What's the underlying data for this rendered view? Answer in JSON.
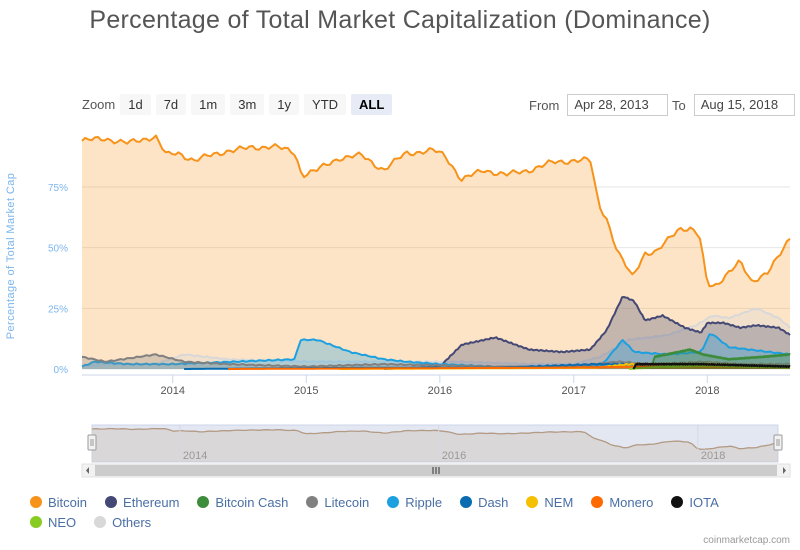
{
  "title": "Percentage of Total Market Capitalization (Dominance)",
  "zoom": {
    "label": "Zoom",
    "buttons": [
      "1d",
      "7d",
      "1m",
      "3m",
      "1y",
      "YTD",
      "ALL"
    ],
    "active": "ALL"
  },
  "range": {
    "from_label": "From",
    "from_value": "Apr 28, 2013",
    "to_label": "To",
    "to_value": "Aug 15, 2018"
  },
  "credits": "coinmarketcap.com",
  "colors": {
    "bitcoin": "#f7931a",
    "ethereum": "#434875",
    "bitcoin_cash": "#3c8c3c",
    "litecoin": "#808080",
    "ripple": "#1da0e0",
    "dash": "#0a6cb0",
    "nem": "#f5c000",
    "monero": "#ff6a00",
    "iota": "#111111",
    "neo": "#88cc22",
    "others": "#d8d8d8"
  },
  "chart_data": {
    "type": "area",
    "title": "Percentage of Total Market Capitalization (Dominance)",
    "ylabel": "Percentage of Total Market Cap",
    "xlabel": "",
    "ylim": [
      0,
      100
    ],
    "xlim": [
      "2013-04-28",
      "2018-08-15"
    ],
    "y_ticks": [
      "0%",
      "25%",
      "50%",
      "75%"
    ],
    "x_ticks": [
      "2014",
      "2015",
      "2016",
      "2017",
      "2018"
    ],
    "navigator_ticks": [
      "2014",
      "2016",
      "2018"
    ],
    "legend_placement": "bottom",
    "grid": true,
    "series": [
      {
        "name": "Bitcoin",
        "points": [
          [
            "2013-04-28",
            94
          ],
          [
            "2013-07-01",
            95
          ],
          [
            "2013-09-01",
            93
          ],
          [
            "2013-11-15",
            96
          ],
          [
            "2013-12-15",
            88
          ],
          [
            "2014-01-15",
            89
          ],
          [
            "2014-03-01",
            86
          ],
          [
            "2014-06-01",
            90
          ],
          [
            "2014-08-01",
            91
          ],
          [
            "2014-10-01",
            92
          ],
          [
            "2014-12-01",
            89
          ],
          [
            "2014-12-20",
            80
          ],
          [
            "2015-02-01",
            82
          ],
          [
            "2015-04-01",
            87
          ],
          [
            "2015-06-01",
            88
          ],
          [
            "2015-08-01",
            82
          ],
          [
            "2015-10-01",
            89
          ],
          [
            "2015-12-15",
            90
          ],
          [
            "2016-01-15",
            88
          ],
          [
            "2016-03-01",
            78
          ],
          [
            "2016-05-01",
            82
          ],
          [
            "2016-07-01",
            80
          ],
          [
            "2016-09-01",
            82
          ],
          [
            "2016-11-01",
            85
          ],
          [
            "2017-01-01",
            86
          ],
          [
            "2017-02-15",
            86
          ],
          [
            "2017-03-10",
            68
          ],
          [
            "2017-04-01",
            62
          ],
          [
            "2017-05-01",
            48
          ],
          [
            "2017-06-10",
            38
          ],
          [
            "2017-07-15",
            48
          ],
          [
            "2017-08-15",
            48
          ],
          [
            "2017-09-15",
            53
          ],
          [
            "2017-10-15",
            58
          ],
          [
            "2017-11-15",
            58
          ],
          [
            "2017-12-10",
            55
          ],
          [
            "2018-01-01",
            35
          ],
          [
            "2018-01-20",
            34
          ],
          [
            "2018-03-01",
            40
          ],
          [
            "2018-04-01",
            44
          ],
          [
            "2018-05-01",
            36
          ],
          [
            "2018-06-15",
            40
          ],
          [
            "2018-07-15",
            46
          ],
          [
            "2018-08-15",
            54
          ]
        ]
      },
      {
        "name": "Ethereum",
        "points": [
          [
            "2015-08-01",
            0
          ],
          [
            "2016-01-01",
            1
          ],
          [
            "2016-03-01",
            10
          ],
          [
            "2016-06-01",
            13
          ],
          [
            "2016-09-01",
            8
          ],
          [
            "2016-12-01",
            7
          ],
          [
            "2017-02-15",
            8
          ],
          [
            "2017-04-01",
            16
          ],
          [
            "2017-05-15",
            30
          ],
          [
            "2017-06-15",
            28
          ],
          [
            "2017-07-15",
            20
          ],
          [
            "2017-09-01",
            22
          ],
          [
            "2017-11-01",
            17
          ],
          [
            "2017-12-15",
            15
          ],
          [
            "2018-01-01",
            19
          ],
          [
            "2018-02-15",
            19
          ],
          [
            "2018-04-01",
            17
          ],
          [
            "2018-05-15",
            18
          ],
          [
            "2018-07-15",
            17
          ],
          [
            "2018-08-15",
            14
          ]
        ]
      },
      {
        "name": "Bitcoin Cash",
        "points": [
          [
            "2017-08-01",
            0
          ],
          [
            "2017-08-10",
            5
          ],
          [
            "2017-11-15",
            8
          ],
          [
            "2017-12-20",
            6
          ],
          [
            "2018-03-01",
            4
          ],
          [
            "2018-06-01",
            5
          ],
          [
            "2018-08-15",
            6
          ]
        ]
      },
      {
        "name": "Litecoin",
        "points": [
          [
            "2013-04-28",
            5
          ],
          [
            "2013-07-01",
            3
          ],
          [
            "2013-11-15",
            6
          ],
          [
            "2014-02-01",
            3
          ],
          [
            "2014-06-01",
            2
          ],
          [
            "2015-01-01",
            1
          ],
          [
            "2015-08-01",
            2
          ],
          [
            "2016-06-01",
            1
          ],
          [
            "2017-01-01",
            1
          ],
          [
            "2017-05-01",
            3
          ],
          [
            "2017-08-01",
            2
          ],
          [
            "2017-12-20",
            3
          ],
          [
            "2018-04-01",
            2
          ],
          [
            "2018-08-15",
            2
          ]
        ]
      },
      {
        "name": "Ripple",
        "points": [
          [
            "2013-04-28",
            1
          ],
          [
            "2013-06-01",
            3
          ],
          [
            "2013-09-01",
            2
          ],
          [
            "2014-01-01",
            2
          ],
          [
            "2014-12-01",
            4
          ],
          [
            "2014-12-15",
            12
          ],
          [
            "2015-02-01",
            12
          ],
          [
            "2015-05-01",
            7
          ],
          [
            "2015-08-01",
            4
          ],
          [
            "2015-10-01",
            3
          ],
          [
            "2016-01-01",
            2
          ],
          [
            "2016-06-01",
            1
          ],
          [
            "2017-01-01",
            1
          ],
          [
            "2017-03-15",
            1
          ],
          [
            "2017-05-15",
            12
          ],
          [
            "2017-06-15",
            7
          ],
          [
            "2017-09-15",
            6
          ],
          [
            "2017-12-15",
            7
          ],
          [
            "2018-01-10",
            15
          ],
          [
            "2018-03-01",
            9
          ],
          [
            "2018-08-15",
            6
          ]
        ]
      },
      {
        "name": "Dash",
        "points": [
          [
            "2014-02-01",
            0
          ],
          [
            "2015-06-01",
            0.5
          ],
          [
            "2016-06-01",
            0.5
          ],
          [
            "2017-03-01",
            2
          ],
          [
            "2017-06-01",
            2
          ],
          [
            "2018-01-01",
            1.5
          ],
          [
            "2018-08-15",
            1
          ]
        ]
      },
      {
        "name": "NEM",
        "points": [
          [
            "2015-04-01",
            0
          ],
          [
            "2017-03-01",
            0.5
          ],
          [
            "2017-06-01",
            2
          ],
          [
            "2018-01-10",
            2
          ],
          [
            "2018-08-15",
            0.5
          ]
        ]
      },
      {
        "name": "Monero",
        "points": [
          [
            "2014-06-01",
            0
          ],
          [
            "2016-09-01",
            0.5
          ],
          [
            "2017-09-01",
            1
          ],
          [
            "2018-08-15",
            1
          ]
        ]
      },
      {
        "name": "IOTA",
        "points": [
          [
            "2017-06-13",
            0
          ],
          [
            "2017-06-20",
            2
          ],
          [
            "2017-12-15",
            2
          ],
          [
            "2018-08-15",
            1
          ]
        ]
      },
      {
        "name": "NEO",
        "points": [
          [
            "2017-06-01",
            0
          ],
          [
            "2017-09-01",
            1
          ],
          [
            "2018-01-15",
            1.5
          ],
          [
            "2018-08-15",
            0.5
          ]
        ]
      },
      {
        "name": "Others",
        "points": [
          [
            "2013-04-28",
            1
          ],
          [
            "2013-07-01",
            2
          ],
          [
            "2013-11-15",
            2
          ],
          [
            "2014-02-01",
            6
          ],
          [
            "2014-06-01",
            4
          ],
          [
            "2015-01-01",
            3
          ],
          [
            "2016-03-01",
            3
          ],
          [
            "2016-09-01",
            2
          ],
          [
            "2017-01-01",
            2
          ],
          [
            "2017-03-15",
            5
          ],
          [
            "2017-06-01",
            12
          ],
          [
            "2017-09-15",
            14
          ],
          [
            "2017-12-01",
            18
          ],
          [
            "2018-01-15",
            22
          ],
          [
            "2018-03-01",
            21
          ],
          [
            "2018-05-15",
            25
          ],
          [
            "2018-07-15",
            21
          ],
          [
            "2018-08-15",
            17
          ]
        ]
      }
    ]
  }
}
